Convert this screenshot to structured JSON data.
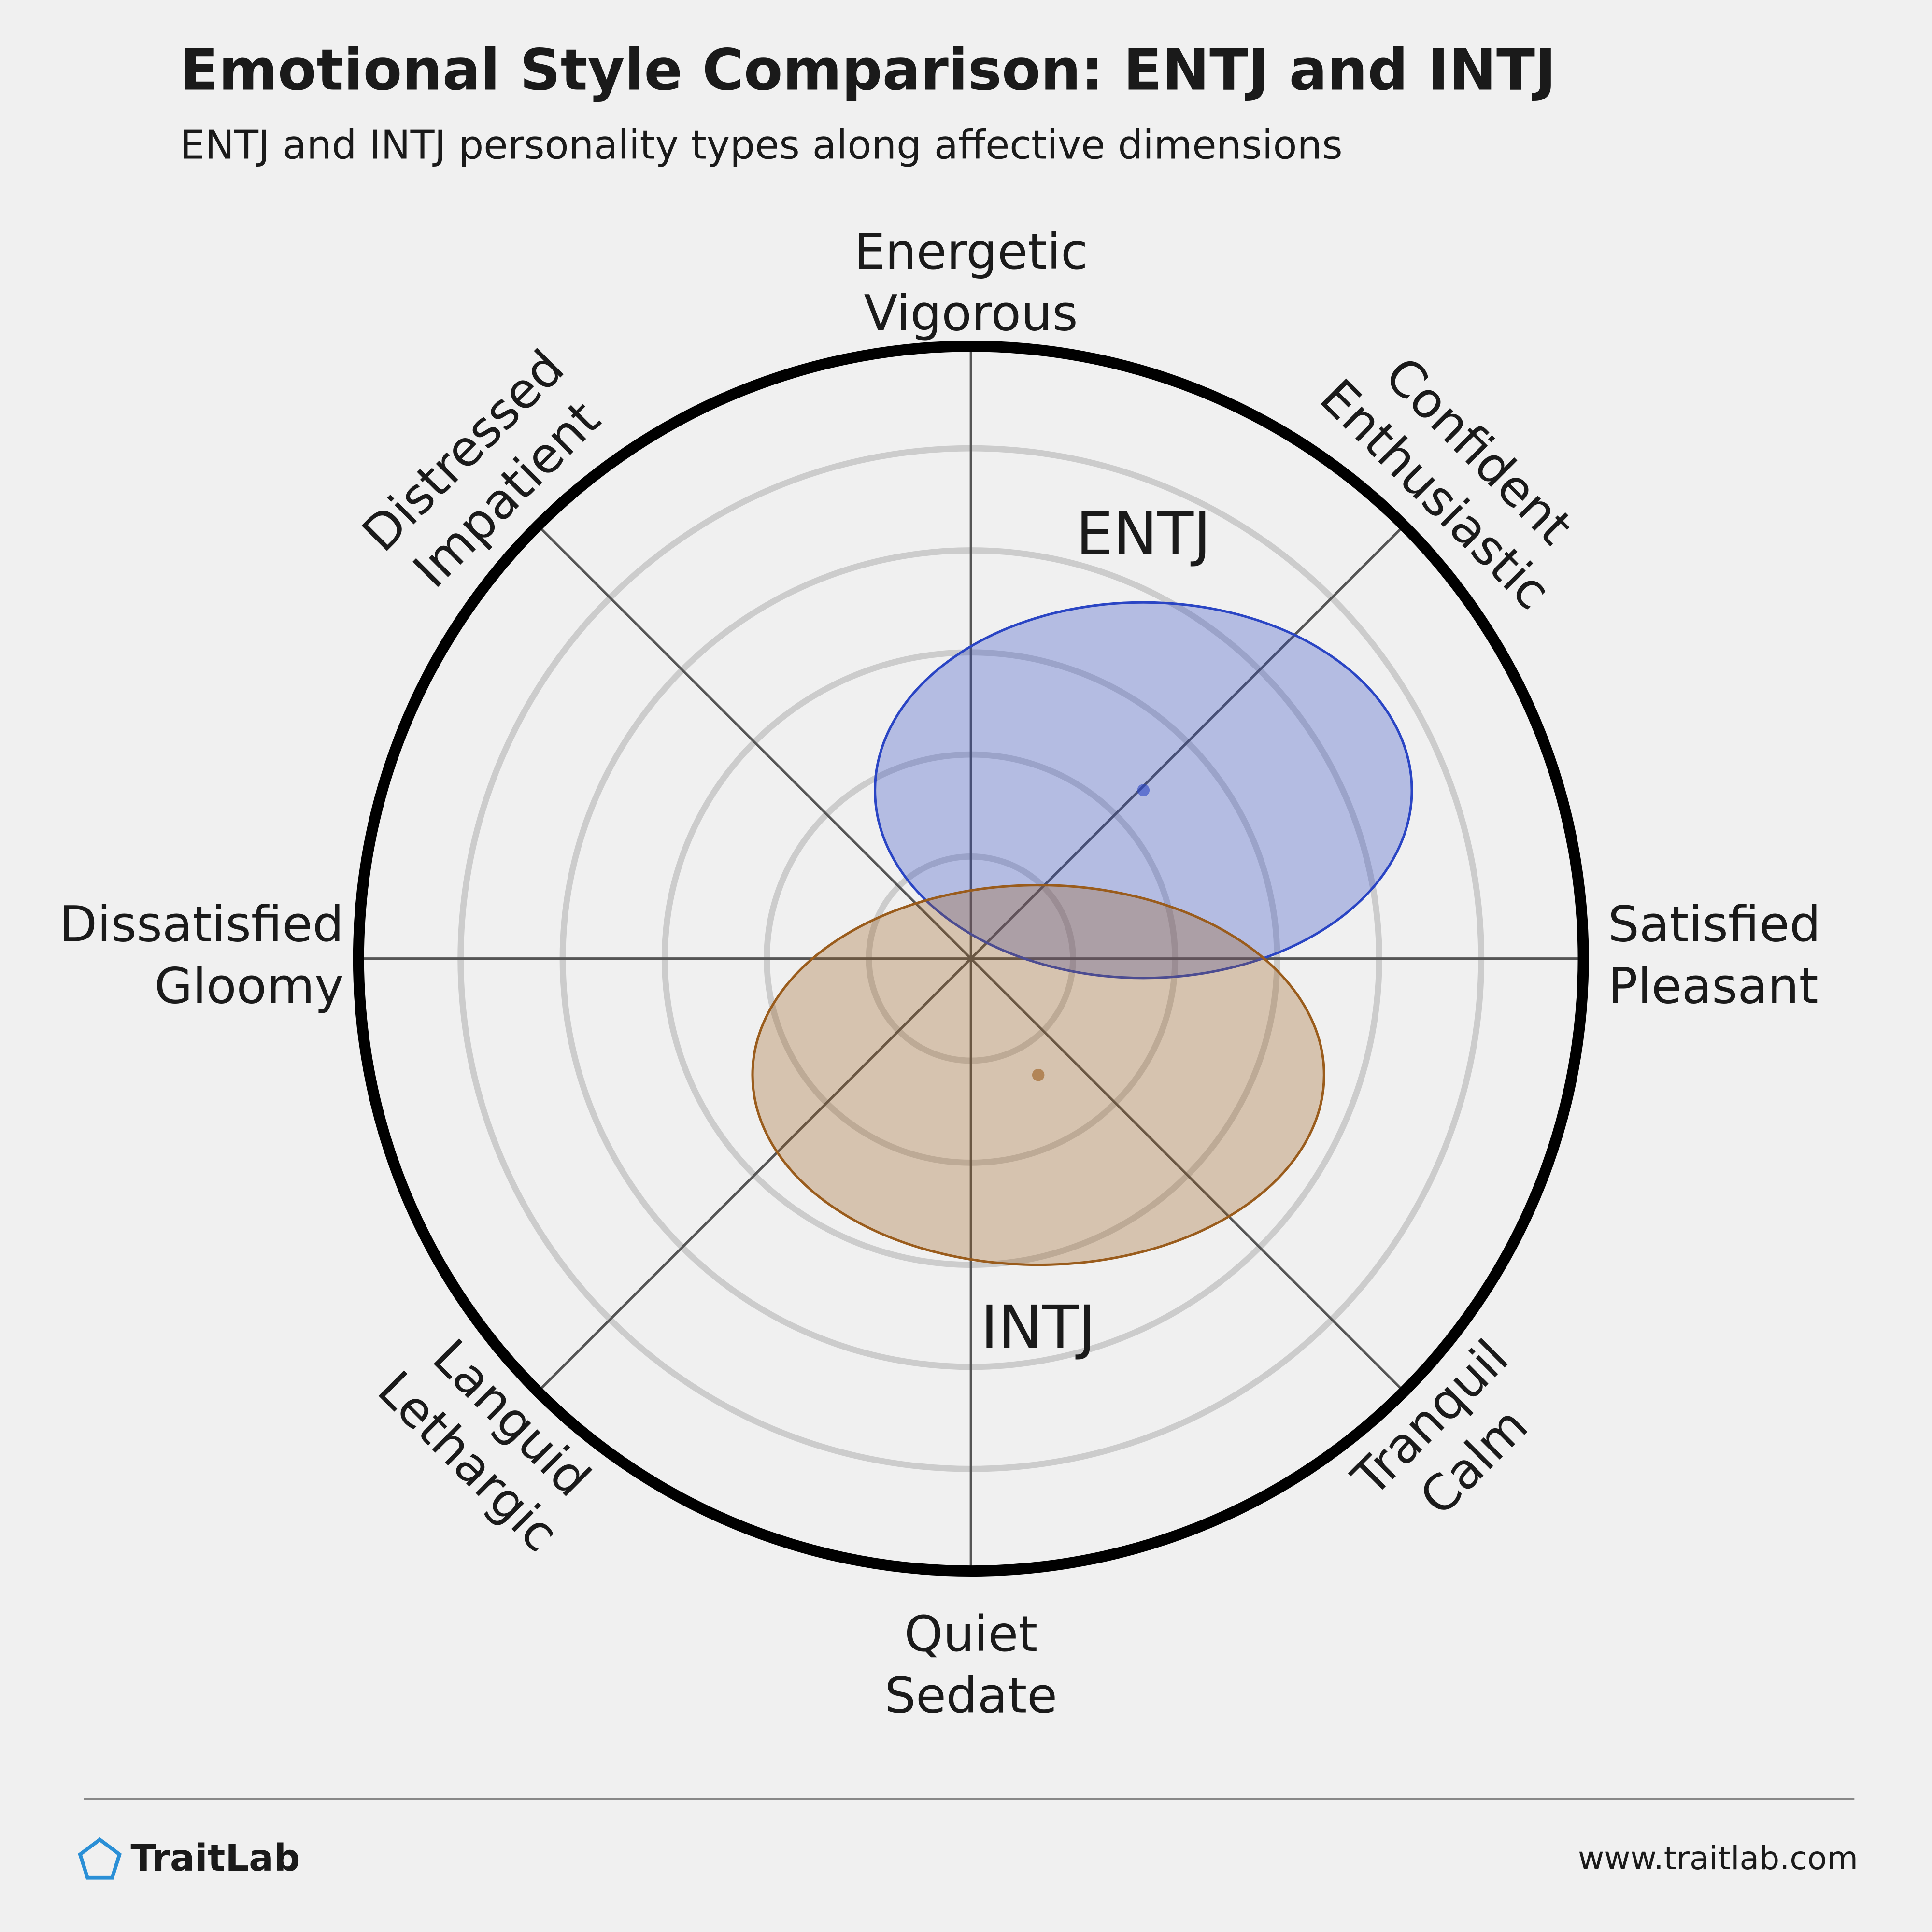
{
  "chart_data": {
    "type": "circumplex",
    "title": "Emotional Style Comparison: ENTJ and INTJ",
    "subtitle": "ENTJ and INTJ personality types along affective dimensions",
    "rlim": [
      0,
      6
    ],
    "rticks": [
      1,
      2,
      3,
      4,
      5
    ],
    "axes": [
      {
        "angle": 90,
        "label": [
          "Energetic",
          "Vigorous"
        ]
      },
      {
        "angle": 45,
        "label": [
          "Confident",
          "Enthusiastic"
        ]
      },
      {
        "angle": 0,
        "label": [
          "Satisfied",
          "Pleasant"
        ]
      },
      {
        "angle": -45,
        "label": [
          "Tranquil",
          "Calm"
        ]
      },
      {
        "angle": -90,
        "label": [
          "Quiet",
          "Sedate"
        ]
      },
      {
        "angle": -135,
        "label": [
          "Languid",
          "Lethargic"
        ]
      },
      {
        "angle": 180,
        "label": [
          "Dissatisfied",
          "Gloomy"
        ]
      },
      {
        "angle": 135,
        "label": [
          "Distressed",
          "Impatient"
        ]
      }
    ],
    "series": [
      {
        "name": "ENTJ",
        "color": "#2a45c4",
        "center": [
          1.69,
          1.65
        ],
        "radii": [
          2.63,
          1.84
        ]
      },
      {
        "name": "INTJ",
        "color": "#9a5c1c",
        "center": [
          0.66,
          -1.14
        ],
        "radii": [
          2.8,
          1.86
        ]
      }
    ]
  },
  "footer": {
    "brand": "TraitLab",
    "url": "www.traitlab.com"
  }
}
